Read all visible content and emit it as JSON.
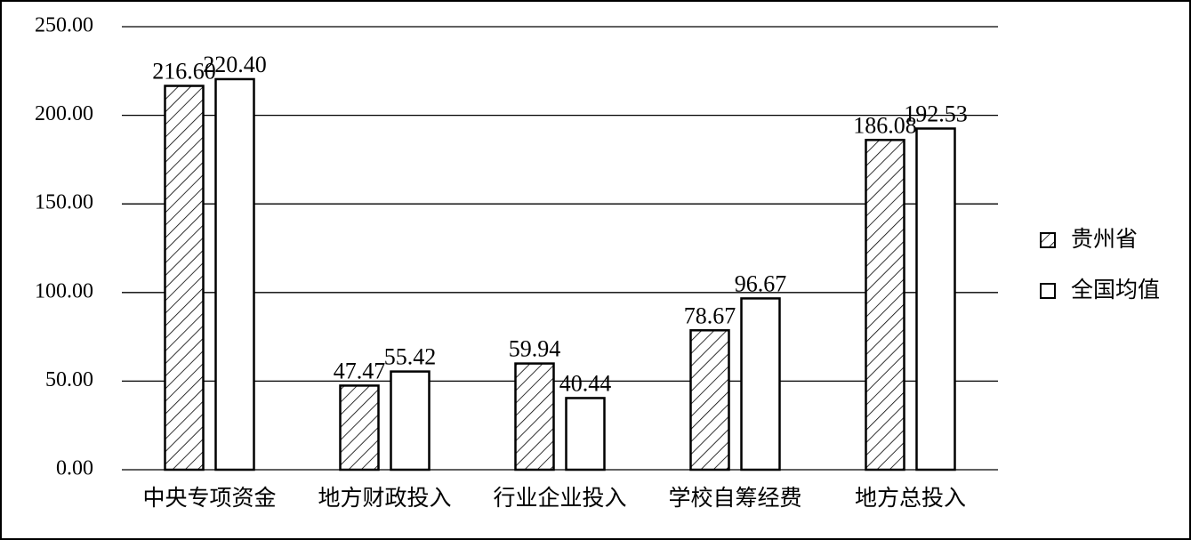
{
  "chart_data": {
    "type": "bar",
    "categories": [
      "中央专项资金",
      "地方财政投入",
      "行业企业投入",
      "学校自筹经费",
      "地方总投入"
    ],
    "series": [
      {
        "name": "贵州省",
        "color": "#ffffff",
        "hatch": true,
        "values": [
          216.6,
          47.47,
          59.94,
          78.67,
          186.08
        ],
        "value_labels": [
          "216.60",
          "47.47",
          "59.94",
          "78.67",
          "186.08"
        ]
      },
      {
        "name": "全国均值",
        "color": "#ffffff",
        "hatch": false,
        "values": [
          220.4,
          55.42,
          40.44,
          96.67,
          192.53
        ],
        "value_labels": [
          "220.40",
          "55.42",
          "40.44",
          "96.67",
          "192.53"
        ]
      }
    ],
    "ylim": [
      0,
      250
    ],
    "yticks": [
      {
        "value": 0,
        "label": "0.00"
      },
      {
        "value": 50,
        "label": "50.00"
      },
      {
        "value": 100,
        "label": "100.00"
      },
      {
        "value": 150,
        "label": "150.00"
      },
      {
        "value": 200,
        "label": "200.00"
      },
      {
        "value": 250,
        "label": "250.00"
      }
    ],
    "grid": true,
    "legend": "right"
  }
}
